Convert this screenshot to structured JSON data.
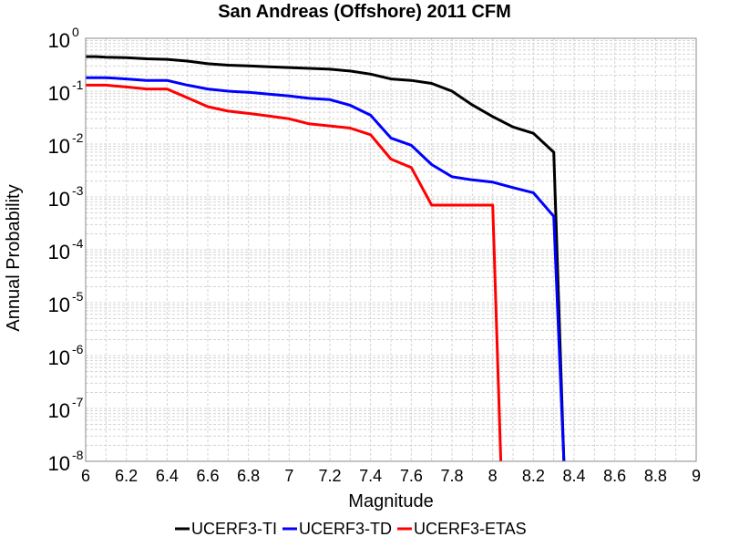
{
  "chart_data": {
    "type": "line",
    "title": "San Andreas (Offshore) 2011 CFM",
    "xlabel": "Magnitude",
    "ylabel": "Annual Probability",
    "xlim": [
      6,
      9
    ],
    "ylim": [
      1e-08,
      1
    ],
    "yscale": "log",
    "grid": true,
    "legend_position": "bottom-center",
    "x_ticks": [
      "6",
      "6.2",
      "6.4",
      "6.6",
      "6.8",
      "7",
      "7.2",
      "7.4",
      "7.6",
      "7.8",
      "8",
      "8.2",
      "8.4",
      "8.6",
      "8.8",
      "9"
    ],
    "y_ticks": [
      {
        "base": "10",
        "exp": "0"
      },
      {
        "base": "10",
        "exp": "-1"
      },
      {
        "base": "10",
        "exp": "-2"
      },
      {
        "base": "10",
        "exp": "-3"
      },
      {
        "base": "10",
        "exp": "-4"
      },
      {
        "base": "10",
        "exp": "-5"
      },
      {
        "base": "10",
        "exp": "-6"
      },
      {
        "base": "10",
        "exp": "-7"
      },
      {
        "base": "10",
        "exp": "-8"
      }
    ],
    "series": [
      {
        "name": "UCERF3-TI",
        "color": "#000000",
        "x": [
          6.0,
          6.05,
          6.1,
          6.2,
          6.3,
          6.4,
          6.5,
          6.6,
          6.7,
          6.8,
          6.9,
          7.0,
          7.1,
          7.2,
          7.3,
          7.4,
          7.5,
          7.6,
          7.7,
          7.8,
          7.9,
          8.0,
          8.1,
          8.2,
          8.3,
          8.35
        ],
        "y": [
          0.45,
          0.45,
          0.44,
          0.43,
          0.41,
          0.4,
          0.37,
          0.33,
          0.31,
          0.3,
          0.29,
          0.28,
          0.27,
          0.26,
          0.24,
          0.21,
          0.17,
          0.16,
          0.14,
          0.1,
          0.055,
          0.033,
          0.021,
          0.016,
          0.007,
          1e-08
        ]
      },
      {
        "name": "UCERF3-TD",
        "color": "#0000ff",
        "x": [
          6.0,
          6.05,
          6.1,
          6.2,
          6.3,
          6.4,
          6.5,
          6.6,
          6.7,
          6.8,
          6.9,
          7.0,
          7.1,
          7.2,
          7.3,
          7.4,
          7.5,
          7.6,
          7.7,
          7.8,
          7.9,
          8.0,
          8.1,
          8.2,
          8.3,
          8.35
        ],
        "y": [
          0.18,
          0.18,
          0.18,
          0.17,
          0.16,
          0.16,
          0.13,
          0.11,
          0.1,
          0.095,
          0.088,
          0.081,
          0.073,
          0.069,
          0.054,
          0.035,
          0.013,
          0.0095,
          0.0041,
          0.0024,
          0.0021,
          0.0019,
          0.0015,
          0.0012,
          0.00043,
          1e-08
        ]
      },
      {
        "name": "UCERF3-ETAS",
        "color": "#ff0000",
        "x": [
          6.0,
          6.05,
          6.1,
          6.2,
          6.3,
          6.4,
          6.5,
          6.6,
          6.7,
          6.8,
          6.9,
          7.0,
          7.1,
          7.2,
          7.3,
          7.4,
          7.5,
          7.6,
          7.7,
          7.8,
          7.9,
          8.0,
          8.04
        ],
        "y": [
          0.13,
          0.13,
          0.13,
          0.12,
          0.11,
          0.11,
          0.075,
          0.051,
          0.042,
          0.038,
          0.034,
          0.03,
          0.024,
          0.022,
          0.02,
          0.015,
          0.0052,
          0.0036,
          0.0007,
          0.0007,
          0.0007,
          0.0007,
          1e-08
        ]
      }
    ]
  }
}
